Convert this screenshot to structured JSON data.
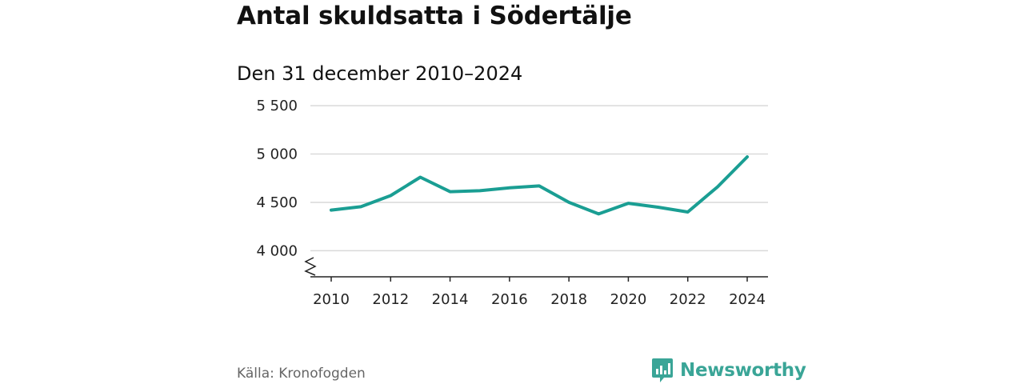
{
  "title": "Antal skuldsatta i Södertälje",
  "subtitle": "Den 31 december 2010–2024",
  "source": "Källa: Kronofogden",
  "brand": {
    "name": "Newsworthy",
    "icon": "newsworthy-logo-icon",
    "color": "#3aa597"
  },
  "colors": {
    "line": "#1a9e93",
    "grid": "#d9d9d9",
    "axis": "#222222"
  },
  "chart_data": {
    "type": "line",
    "title": "Antal skuldsatta i Södertälje",
    "subtitle": "Den 31 december 2010–2024",
    "xlabel": "",
    "ylabel": "",
    "x": [
      2010,
      2011,
      2012,
      2013,
      2014,
      2015,
      2016,
      2017,
      2018,
      2019,
      2020,
      2021,
      2022,
      2023,
      2024
    ],
    "series": [
      {
        "name": "Antal skuldsatta",
        "values": [
          4420,
          4455,
          4570,
          4760,
          4610,
          4620,
          4650,
          4670,
          4500,
          4380,
          4490,
          4450,
          4400,
          4660,
          4970
        ]
      }
    ],
    "xlim": [
      2009.3,
      2024.7
    ],
    "ylim": [
      3730,
      5600
    ],
    "yticks": [
      4000,
      4500,
      5000,
      5500
    ],
    "ytick_labels": [
      "4 000",
      "4 500",
      "5 000",
      "5 500"
    ],
    "xticks": [
      2010,
      2012,
      2014,
      2016,
      2018,
      2020,
      2022,
      2024
    ],
    "xtick_labels": [
      "2010",
      "2012",
      "2014",
      "2016",
      "2018",
      "2020",
      "2022",
      "2024"
    ],
    "y_axis_break": true,
    "grid": true,
    "legend": "none"
  }
}
